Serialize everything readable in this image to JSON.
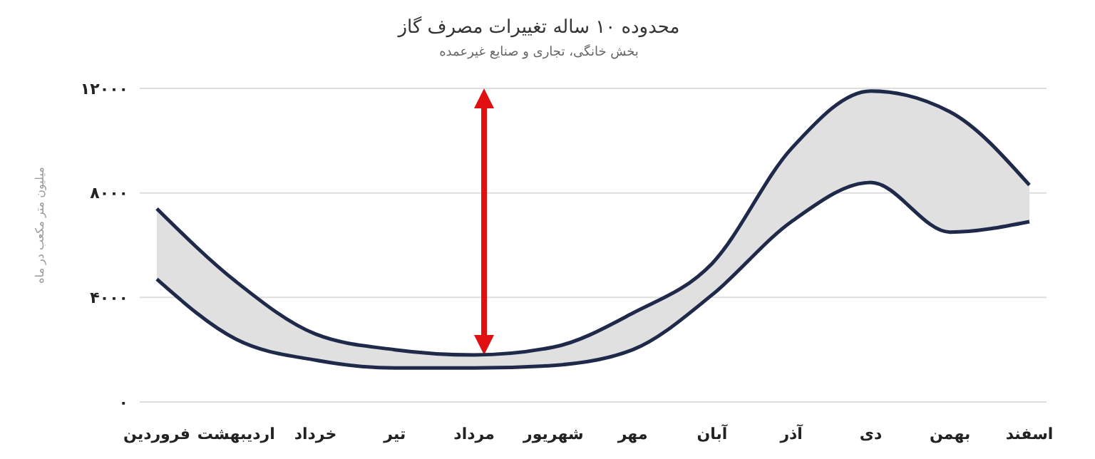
{
  "chart_data": {
    "type": "line",
    "title": "محدوده ۱۰ ساله تغییرات مصرف گاز",
    "subtitle": "بخش خانگی، تجاری و صنایع غیرعمده",
    "ylabel": "میلیون متر مکعب در ماه",
    "categories": [
      "فروردین",
      "اردیبهشت",
      "خرداد",
      "تیر",
      "مرداد",
      "شهریور",
      "مهر",
      "آبان",
      "آذر",
      "دی",
      "بهمن",
      "اسفند"
    ],
    "series": [
      {
        "color": "#1f2a4a",
        "values": [
          7400,
          4600,
          2600,
          2000,
          1800,
          2100,
          3400,
          5300,
          9700,
          11900,
          11100,
          8300
        ],
        "lower": [
          4700,
          2400,
          1600,
          1300,
          1300,
          1400,
          2000,
          4100,
          6900,
          8400,
          6500,
          6900
        ],
        "upper": [
          7400,
          4600,
          2600,
          2000,
          1800,
          2100,
          3400,
          5300,
          9700,
          11900,
          11100,
          8300
        ]
      },
      {
        "color": "#1f2a4a",
        "values": [
          4700,
          2400,
          1600,
          1300,
          1300,
          1400,
          2000,
          4100,
          6900,
          8400,
          6500,
          6900
        ]
      }
    ],
    "ylim": [
      0,
      12000
    ],
    "yticks": [
      {
        "value": 0,
        "label": "۰"
      },
      {
        "value": 4000,
        "label": "۴۰۰۰"
      },
      {
        "value": 8000,
        "label": "۸۰۰۰"
      },
      {
        "value": 12000,
        "label": "۱۲۰۰۰"
      }
    ],
    "grid": "y",
    "legend": false,
    "marker": "none",
    "line_style": "solid"
  }
}
